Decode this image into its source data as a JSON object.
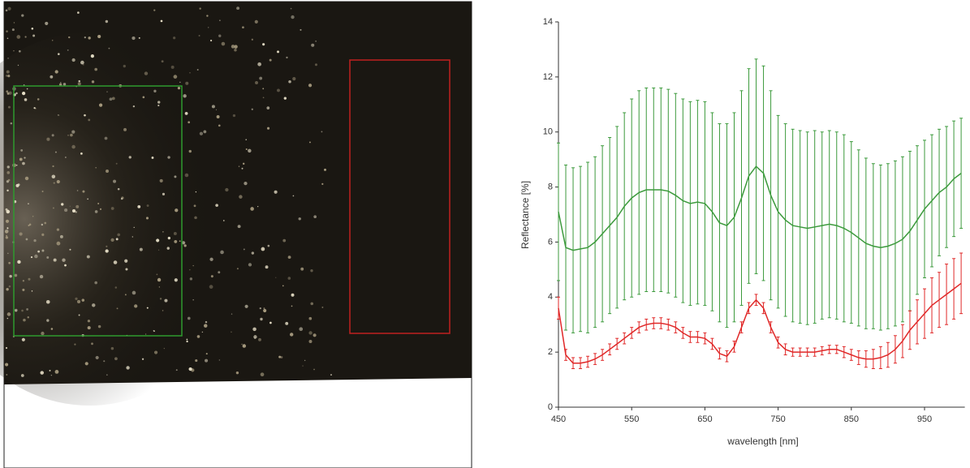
{
  "chart_data": {
    "type": "errorbar-line",
    "x_label": "wavelength [nm]",
    "y_label": "Reflectance [%]",
    "x": [
      450,
      460,
      470,
      480,
      490,
      500,
      510,
      520,
      530,
      540,
      550,
      560,
      570,
      580,
      590,
      600,
      610,
      620,
      630,
      640,
      650,
      660,
      670,
      680,
      690,
      700,
      710,
      720,
      730,
      740,
      750,
      760,
      770,
      780,
      790,
      800,
      810,
      820,
      830,
      840,
      850,
      860,
      870,
      880,
      890,
      900,
      910,
      920,
      930,
      940,
      950,
      960,
      970,
      980,
      990,
      1000
    ],
    "xlim": [
      450,
      1005
    ],
    "xticks": [
      450,
      550,
      650,
      750,
      850,
      950
    ],
    "ylim": [
      0,
      14
    ],
    "yticks": [
      0,
      2,
      4,
      6,
      8,
      10,
      12,
      14
    ],
    "series": [
      {
        "color": "#3c9a3c",
        "values": [
          7.1,
          5.8,
          5.7,
          5.75,
          5.8,
          6.0,
          6.3,
          6.6,
          6.9,
          7.3,
          7.6,
          7.8,
          7.9,
          7.9,
          7.9,
          7.85,
          7.7,
          7.5,
          7.4,
          7.45,
          7.4,
          7.1,
          6.7,
          6.6,
          6.9,
          7.6,
          8.4,
          8.75,
          8.5,
          7.7,
          7.1,
          6.8,
          6.6,
          6.55,
          6.5,
          6.55,
          6.6,
          6.65,
          6.6,
          6.5,
          6.35,
          6.15,
          5.95,
          5.85,
          5.8,
          5.85,
          5.95,
          6.1,
          6.4,
          6.8,
          7.2,
          7.5,
          7.8,
          8.0,
          8.3,
          8.5
        ],
        "errors": [
          2.5,
          3.0,
          3.0,
          3.0,
          3.1,
          3.1,
          3.2,
          3.2,
          3.3,
          3.4,
          3.6,
          3.7,
          3.7,
          3.7,
          3.7,
          3.7,
          3.7,
          3.7,
          3.7,
          3.7,
          3.7,
          3.6,
          3.6,
          3.7,
          3.8,
          3.9,
          3.9,
          3.9,
          3.9,
          3.8,
          3.5,
          3.5,
          3.5,
          3.5,
          3.5,
          3.5,
          3.4,
          3.4,
          3.4,
          3.4,
          3.3,
          3.2,
          3.1,
          3.0,
          3.0,
          3.0,
          3.0,
          3.0,
          2.9,
          2.7,
          2.5,
          2.4,
          2.3,
          2.2,
          2.1,
          2.0
        ]
      },
      {
        "color": "#e02828",
        "values": [
          3.6,
          1.9,
          1.6,
          1.6,
          1.65,
          1.75,
          1.9,
          2.1,
          2.3,
          2.5,
          2.7,
          2.9,
          3.0,
          3.05,
          3.05,
          3.0,
          2.9,
          2.7,
          2.55,
          2.55,
          2.5,
          2.3,
          1.95,
          1.85,
          2.2,
          2.9,
          3.6,
          3.9,
          3.6,
          2.9,
          2.35,
          2.1,
          2.0,
          2.0,
          2.0,
          2.0,
          2.05,
          2.1,
          2.1,
          2.0,
          1.9,
          1.8,
          1.75,
          1.75,
          1.8,
          1.9,
          2.1,
          2.4,
          2.8,
          3.1,
          3.4,
          3.7,
          3.9,
          4.1,
          4.3,
          4.5
        ],
        "errors": [
          0.4,
          0.2,
          0.2,
          0.2,
          0.2,
          0.2,
          0.2,
          0.2,
          0.2,
          0.2,
          0.2,
          0.2,
          0.2,
          0.2,
          0.2,
          0.2,
          0.2,
          0.2,
          0.2,
          0.2,
          0.2,
          0.2,
          0.2,
          0.2,
          0.2,
          0.2,
          0.2,
          0.2,
          0.2,
          0.2,
          0.2,
          0.2,
          0.15,
          0.15,
          0.15,
          0.15,
          0.15,
          0.15,
          0.15,
          0.2,
          0.2,
          0.25,
          0.3,
          0.35,
          0.4,
          0.45,
          0.5,
          0.6,
          0.7,
          0.8,
          0.9,
          1.0,
          1.0,
          1.1,
          1.1,
          1.1
        ]
      }
    ]
  }
}
